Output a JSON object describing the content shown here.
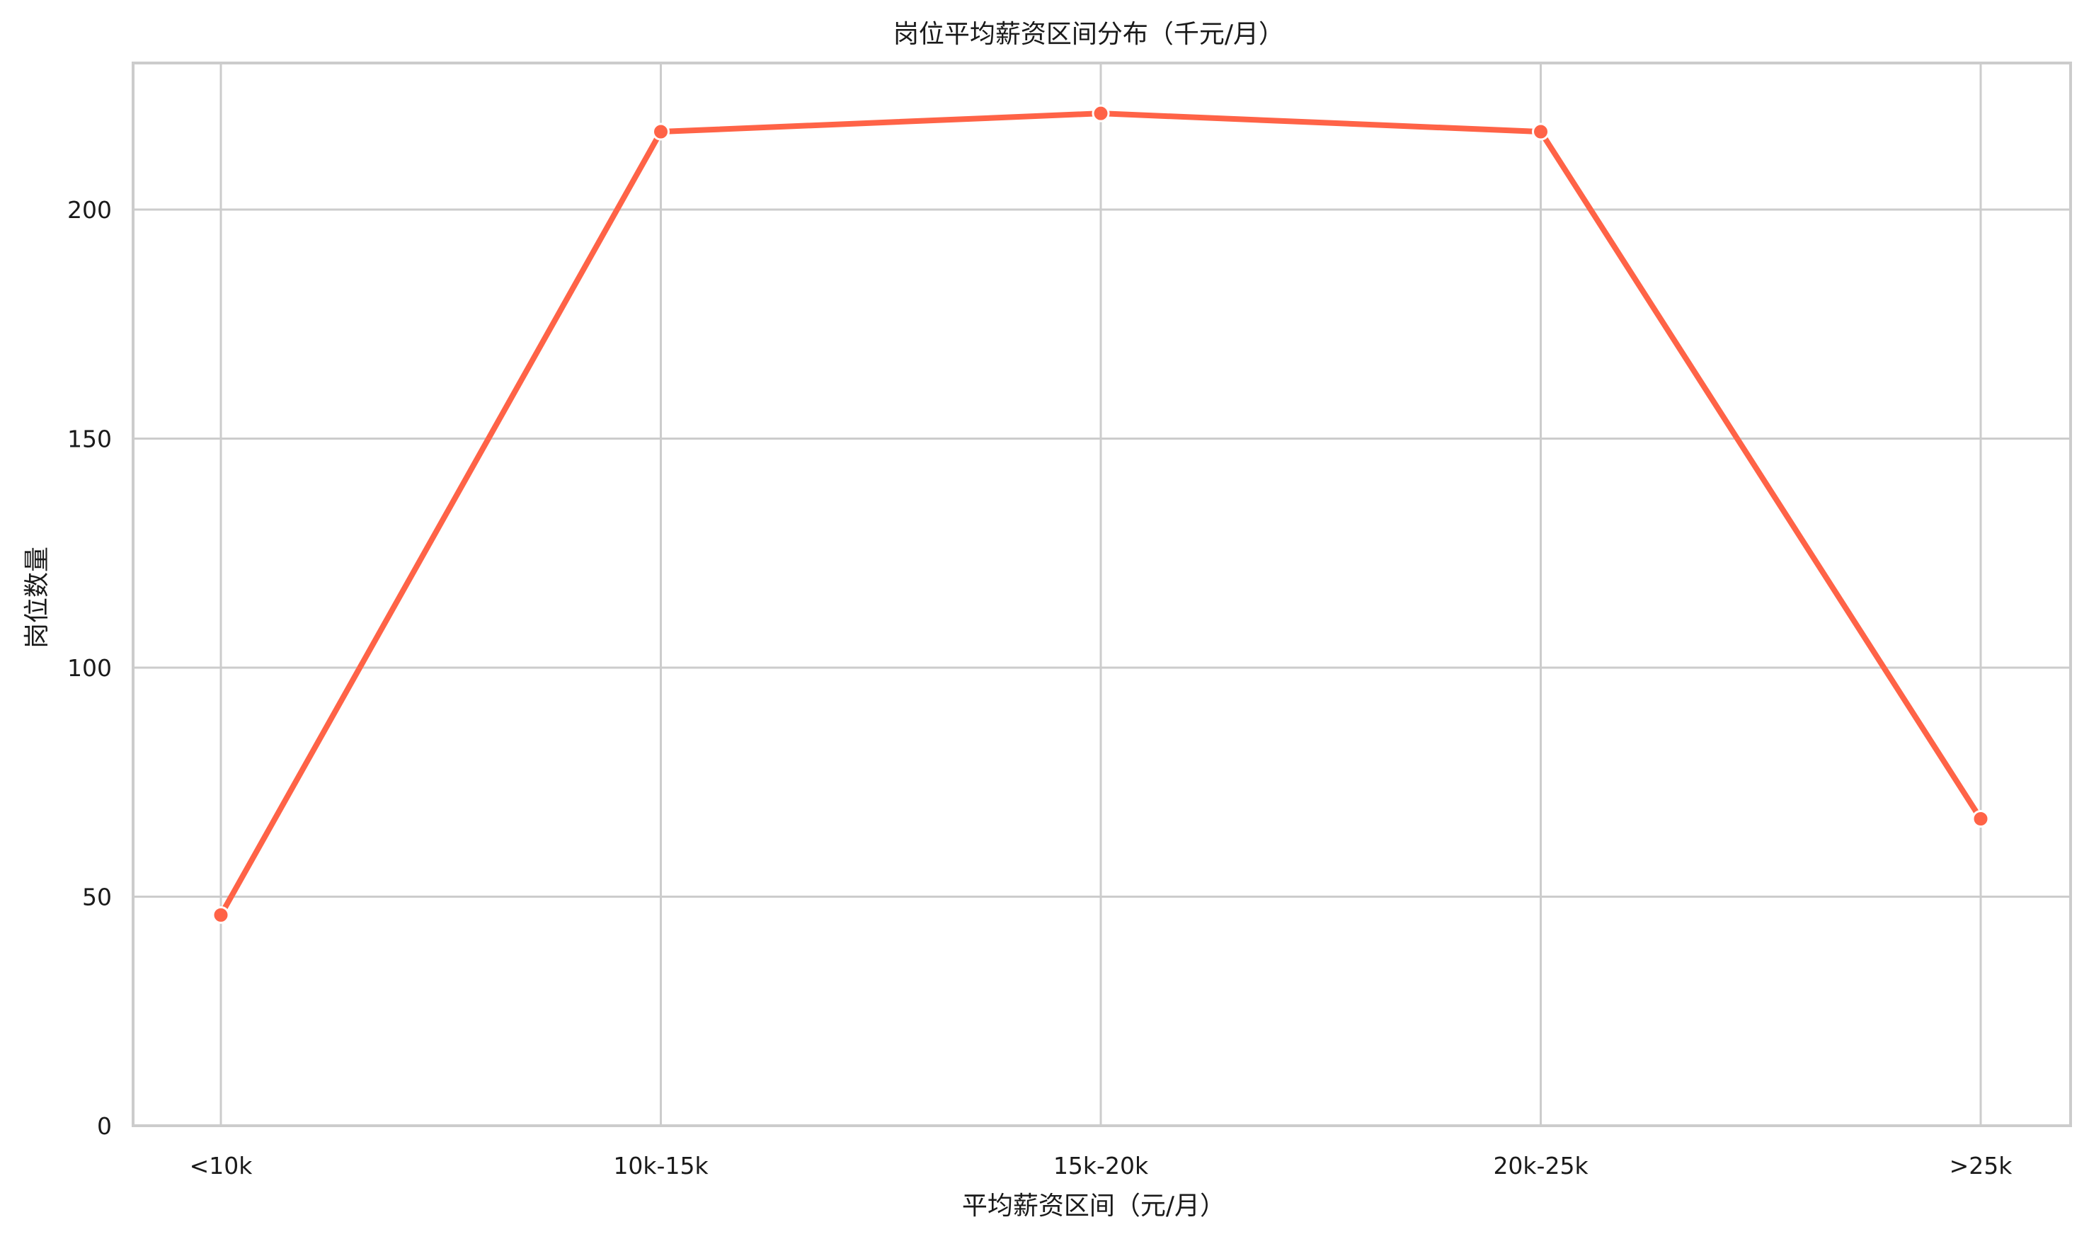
{
  "chart_data": {
    "type": "line",
    "title": "岗位平均薪资区间分布（千元/月）",
    "xlabel": "平均薪资区间（元/月）",
    "ylabel": "岗位数量",
    "categories": [
      "<10k",
      "10k-15k",
      "15k-20k",
      "20k-25k",
      ">25k"
    ],
    "series": [
      {
        "values": [
          46,
          217,
          221,
          217,
          67
        ]
      }
    ],
    "ylim": [
      0,
      232
    ],
    "yticks": [
      0,
      50,
      100,
      150,
      200
    ],
    "ytick_labels": [
      "0",
      "50",
      "100",
      "150",
      "200"
    ],
    "grid": true,
    "legend": "none",
    "markers": true,
    "colors": {
      "line": "#ff6347",
      "marker_edge": "#ffffff",
      "grid": "#cccccc"
    }
  }
}
